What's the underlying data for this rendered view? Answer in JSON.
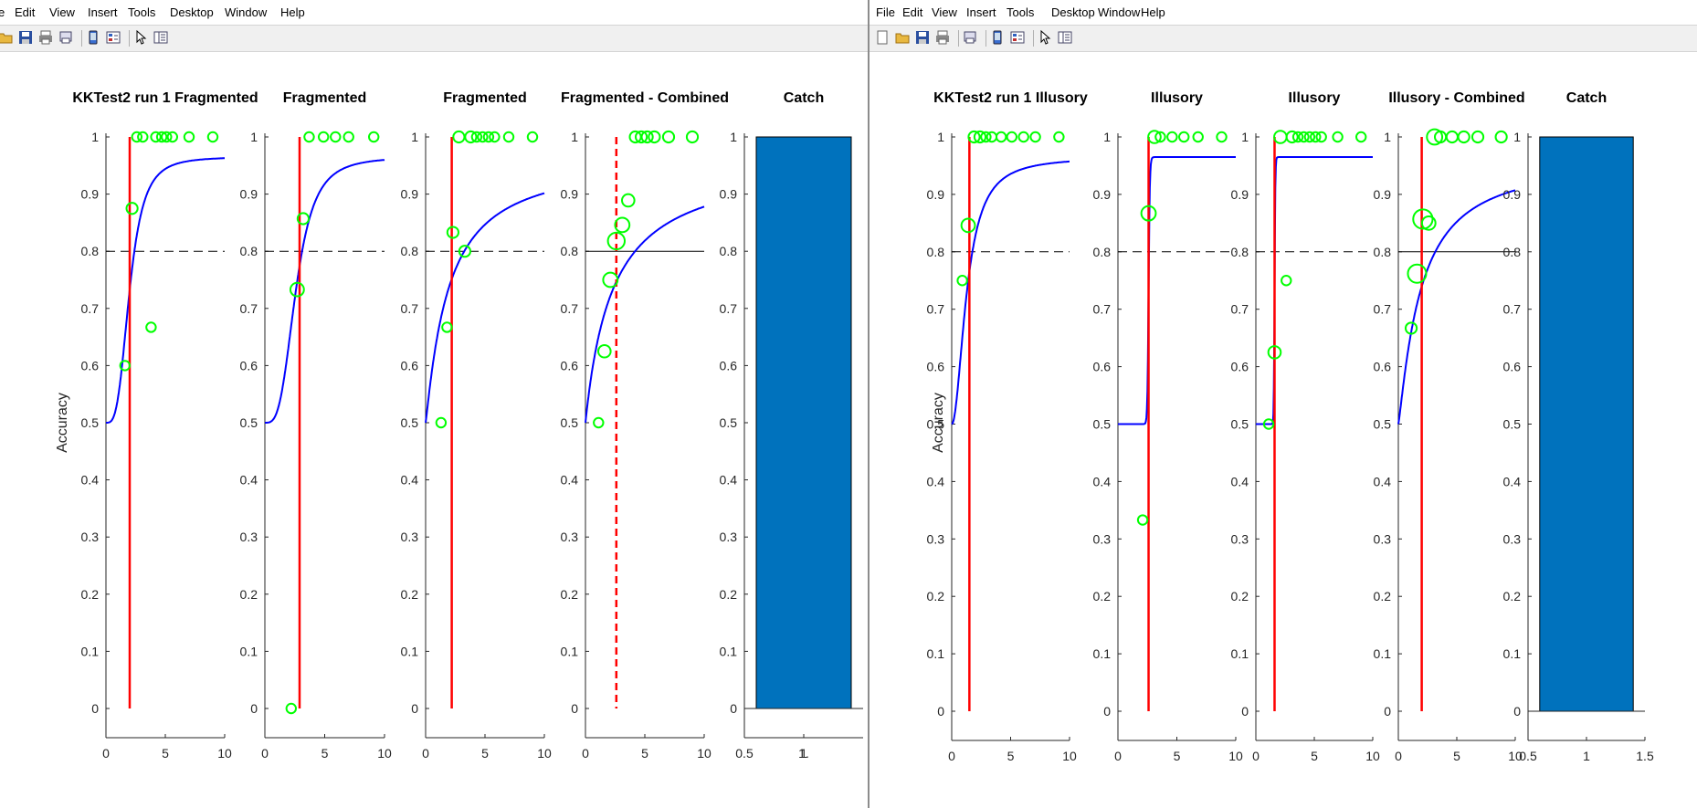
{
  "menus_left": [
    "e",
    "Edit",
    "View",
    "Insert",
    "Tools",
    "Desktop",
    "Window",
    "Help"
  ],
  "menus_right": [
    "File",
    "Edit",
    "View",
    "Insert",
    "Tools",
    "Desktop",
    "Window",
    "Help"
  ],
  "toolbar_icons_left": [
    "open-icon",
    "save-icon",
    "print-icon",
    "link-print-icon",
    "separator",
    "phone-icon",
    "layout-icon",
    "separator",
    "pointer-icon",
    "property-icon"
  ],
  "toolbar_icons_right": [
    "new-icon",
    "open-icon",
    "save-icon",
    "print-icon",
    "separator",
    "link-print-icon",
    "separator",
    "phone-icon",
    "layout-icon",
    "separator",
    "pointer-icon",
    "property-icon"
  ],
  "colors": {
    "fit": "#0000ff",
    "threshold": "#ff0000",
    "points": "#00ff00",
    "bar": "#0072bd"
  },
  "figures": {
    "left": {
      "ylabel": "Accuracy",
      "chart_data": [
        {
          "type": "line",
          "title": "KKTest2 run 1 Fragmented",
          "xlim": [
            0,
            10
          ],
          "ylim": [
            0,
            1
          ],
          "xticks": [
            0,
            5,
            10
          ],
          "threshold_x": 2.0,
          "threshold_style": "solid",
          "ref_style": "dashed",
          "ref_y": 0.8,
          "fit": {
            "g": 0.5,
            "l": 0.035,
            "a": 2.0,
            "b": 0.3
          },
          "points": [
            {
              "x": 1.6,
              "y": 0.6,
              "n": 1
            },
            {
              "x": 2.2,
              "y": 0.875,
              "n": 2
            },
            {
              "x": 2.6,
              "y": 1.0,
              "n": 1
            },
            {
              "x": 3.1,
              "y": 1.0,
              "n": 1
            },
            {
              "x": 3.8,
              "y": 0.667,
              "n": 1
            },
            {
              "x": 4.2,
              "y": 1.0,
              "n": 1
            },
            {
              "x": 4.7,
              "y": 1.0,
              "n": 1
            },
            {
              "x": 5.1,
              "y": 1.0,
              "n": 1
            },
            {
              "x": 5.6,
              "y": 1.0,
              "n": 1
            },
            {
              "x": 7.0,
              "y": 1.0,
              "n": 1
            },
            {
              "x": 9.0,
              "y": 1.0,
              "n": 1
            }
          ]
        },
        {
          "type": "line",
          "title": "Fragmented",
          "xlim": [
            0,
            10
          ],
          "ylim": [
            0,
            1
          ],
          "xticks": [
            0,
            5,
            10
          ],
          "threshold_x": 2.9,
          "threshold_style": "solid",
          "ref_style": "dashed",
          "ref_y": 0.8,
          "fit": {
            "g": 0.5,
            "l": 0.035,
            "a": 2.6,
            "b": 0.3
          },
          "points": [
            {
              "x": 2.2,
              "y": 0.0,
              "n": 1
            },
            {
              "x": 2.7,
              "y": 0.733,
              "n": 4
            },
            {
              "x": 3.2,
              "y": 0.857,
              "n": 2
            },
            {
              "x": 3.7,
              "y": 1.0,
              "n": 1
            },
            {
              "x": 4.9,
              "y": 1.0,
              "n": 1
            },
            {
              "x": 5.9,
              "y": 1.0,
              "n": 1
            },
            {
              "x": 7.0,
              "y": 1.0,
              "n": 1
            },
            {
              "x": 9.1,
              "y": 1.0,
              "n": 1
            }
          ]
        },
        {
          "type": "line",
          "title": "Fragmented",
          "xlim": [
            0,
            10
          ],
          "ylim": [
            0,
            1
          ],
          "xticks": [
            0,
            5,
            10
          ],
          "threshold_x": 2.2,
          "threshold_style": "solid",
          "ref_style": "dashed",
          "ref_y": 0.8,
          "fit": {
            "g": 0.5,
            "l": 0.035,
            "a": 1.9,
            "b": 0.9
          },
          "points": [
            {
              "x": 1.3,
              "y": 0.5,
              "n": 1
            },
            {
              "x": 1.8,
              "y": 0.667,
              "n": 1
            },
            {
              "x": 2.3,
              "y": 0.833,
              "n": 2
            },
            {
              "x": 2.8,
              "y": 1.0,
              "n": 2
            },
            {
              "x": 3.3,
              "y": 0.8,
              "n": 2
            },
            {
              "x": 3.8,
              "y": 1.0,
              "n": 2
            },
            {
              "x": 4.3,
              "y": 1.0,
              "n": 1
            },
            {
              "x": 4.8,
              "y": 1.0,
              "n": 1
            },
            {
              "x": 5.3,
              "y": 1.0,
              "n": 1
            },
            {
              "x": 5.8,
              "y": 1.0,
              "n": 1
            },
            {
              "x": 7.0,
              "y": 1.0,
              "n": 1
            },
            {
              "x": 9.0,
              "y": 1.0,
              "n": 1
            }
          ]
        },
        {
          "type": "line",
          "title": "Fragmented - Combined",
          "xlim": [
            0,
            10
          ],
          "ylim": [
            0,
            1
          ],
          "xticks": [
            0,
            5,
            10
          ],
          "threshold_x": 2.6,
          "threshold_style": "dashed",
          "ref_style": "solid",
          "ref_y": 0.8,
          "fit": {
            "g": 0.5,
            "l": 0.035,
            "a": 2.3,
            "b": 1.0
          },
          "points": [
            {
              "x": 1.1,
              "y": 0.5,
              "n": 1
            },
            {
              "x": 1.6,
              "y": 0.625,
              "n": 3
            },
            {
              "x": 2.1,
              "y": 0.75,
              "n": 5
            },
            {
              "x": 2.6,
              "y": 0.818,
              "n": 8
            },
            {
              "x": 3.1,
              "y": 0.846,
              "n": 5
            },
            {
              "x": 3.6,
              "y": 0.889,
              "n": 3
            },
            {
              "x": 4.2,
              "y": 1.0,
              "n": 2
            },
            {
              "x": 4.7,
              "y": 1.0,
              "n": 2
            },
            {
              "x": 5.2,
              "y": 1.0,
              "n": 2
            },
            {
              "x": 5.8,
              "y": 1.0,
              "n": 2
            },
            {
              "x": 7.0,
              "y": 1.0,
              "n": 2
            },
            {
              "x": 9.0,
              "y": 1.0,
              "n": 2
            }
          ]
        },
        {
          "type": "bar",
          "title": "Catch",
          "xlim": [
            0.5,
            1.5
          ],
          "ylim": [
            0,
            1
          ],
          "xticks": [
            0.5,
            1,
            "1."
          ],
          "categories": [
            1
          ],
          "values": [
            1.0
          ]
        }
      ]
    },
    "right": {
      "ylabel": "Accuracy",
      "chart_data": [
        {
          "type": "line",
          "title": "KKTest2 run 1 Illusory",
          "xlim": [
            0,
            10
          ],
          "ylim": [
            0,
            1
          ],
          "xticks": [
            0,
            5,
            10
          ],
          "threshold_x": 1.5,
          "threshold_style": "solid",
          "ref_style": "dashed",
          "ref_y": 0.8,
          "fit": {
            "g": 0.5,
            "l": 0.035,
            "a": 1.3,
            "b": 0.5
          },
          "points": [
            {
              "x": 0.9,
              "y": 0.75,
              "n": 1
            },
            {
              "x": 1.4,
              "y": 0.846,
              "n": 4
            },
            {
              "x": 1.9,
              "y": 1.0,
              "n": 2
            },
            {
              "x": 2.4,
              "y": 1.0,
              "n": 2
            },
            {
              "x": 2.9,
              "y": 1.0,
              "n": 1
            },
            {
              "x": 3.4,
              "y": 1.0,
              "n": 1
            },
            {
              "x": 4.2,
              "y": 1.0,
              "n": 1
            },
            {
              "x": 5.1,
              "y": 1.0,
              "n": 1
            },
            {
              "x": 6.1,
              "y": 1.0,
              "n": 1
            },
            {
              "x": 7.1,
              "y": 1.0,
              "n": 1
            },
            {
              "x": 9.1,
              "y": 1.0,
              "n": 1
            }
          ]
        },
        {
          "type": "line",
          "title": "Illusory",
          "xlim": [
            0,
            10
          ],
          "ylim": [
            0,
            1
          ],
          "xticks": [
            0,
            5,
            10
          ],
          "threshold_x": 2.6,
          "threshold_style": "solid",
          "ref_style": "dashed",
          "ref_y": 0.8,
          "fit": {
            "g": 0.5,
            "l": 0.035,
            "a": 2.6,
            "b": 0.02
          },
          "points": [
            {
              "x": 2.1,
              "y": 0.333,
              "n": 1
            },
            {
              "x": 2.6,
              "y": 0.867,
              "n": 5
            },
            {
              "x": 3.1,
              "y": 1.0,
              "n": 3
            },
            {
              "x": 3.6,
              "y": 1.0,
              "n": 1
            },
            {
              "x": 4.6,
              "y": 1.0,
              "n": 1
            },
            {
              "x": 5.6,
              "y": 1.0,
              "n": 1
            },
            {
              "x": 6.8,
              "y": 1.0,
              "n": 1
            },
            {
              "x": 8.8,
              "y": 1.0,
              "n": 1
            }
          ]
        },
        {
          "type": "line",
          "title": "Illusory",
          "xlim": [
            0,
            10
          ],
          "ylim": [
            0,
            1
          ],
          "xticks": [
            0,
            5,
            10
          ],
          "threshold_x": 1.6,
          "threshold_style": "solid",
          "ref_style": "dashed",
          "ref_y": 0.8,
          "fit": {
            "g": 0.5,
            "l": 0.035,
            "a": 1.6,
            "b": 0.02
          },
          "points": [
            {
              "x": 1.1,
              "y": 0.5,
              "n": 1
            },
            {
              "x": 1.6,
              "y": 0.625,
              "n": 3
            },
            {
              "x": 2.1,
              "y": 1.0,
              "n": 3
            },
            {
              "x": 2.6,
              "y": 0.75,
              "n": 1
            },
            {
              "x": 3.1,
              "y": 1.0,
              "n": 2
            },
            {
              "x": 3.6,
              "y": 1.0,
              "n": 1
            },
            {
              "x": 4.1,
              "y": 1.0,
              "n": 1
            },
            {
              "x": 4.6,
              "y": 1.0,
              "n": 1
            },
            {
              "x": 5.1,
              "y": 1.0,
              "n": 1
            },
            {
              "x": 5.6,
              "y": 1.0,
              "n": 1
            },
            {
              "x": 7.0,
              "y": 1.0,
              "n": 1
            },
            {
              "x": 9.0,
              "y": 1.0,
              "n": 1
            }
          ]
        },
        {
          "type": "line",
          "title": "Illusory - Combined",
          "xlim": [
            0,
            10
          ],
          "ylim": [
            0,
            1
          ],
          "xticks": [
            0,
            5,
            10
          ],
          "threshold_x": 2.0,
          "threshold_style": "solid",
          "ref_style": "solid",
          "ref_y": 0.8,
          "fit": {
            "g": 0.5,
            "l": 0.035,
            "a": 1.9,
            "b": 0.85
          },
          "points": [
            {
              "x": 1.1,
              "y": 0.667,
              "n": 2
            },
            {
              "x": 1.6,
              "y": 0.762,
              "n": 10
            },
            {
              "x": 2.1,
              "y": 0.857,
              "n": 12
            },
            {
              "x": 2.6,
              "y": 0.85,
              "n": 4
            },
            {
              "x": 3.1,
              "y": 1.0,
              "n": 6
            },
            {
              "x": 3.6,
              "y": 1.0,
              "n": 2
            },
            {
              "x": 4.6,
              "y": 1.0,
              "n": 2
            },
            {
              "x": 5.6,
              "y": 1.0,
              "n": 2
            },
            {
              "x": 6.8,
              "y": 1.0,
              "n": 2
            },
            {
              "x": 8.8,
              "y": 1.0,
              "n": 2
            }
          ]
        },
        {
          "type": "bar",
          "title": "Catch",
          "xlim": [
            0.5,
            1.5
          ],
          "ylim": [
            0,
            1
          ],
          "xticks": [
            0.5,
            1,
            1.5
          ],
          "categories": [
            1
          ],
          "values": [
            1.0
          ]
        }
      ]
    }
  }
}
